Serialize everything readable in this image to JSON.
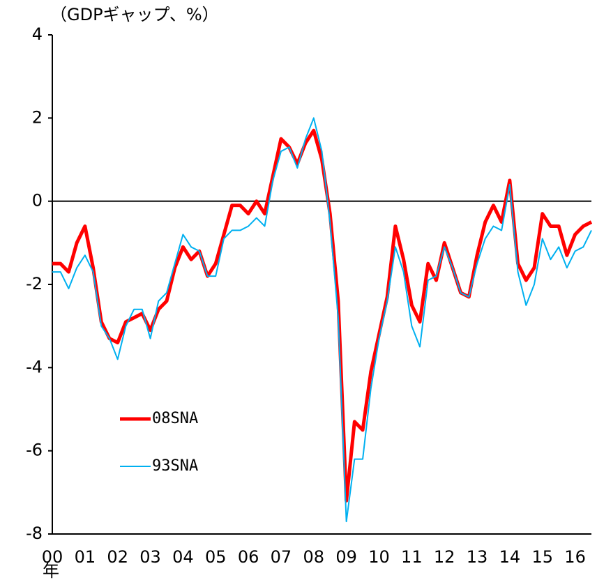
{
  "chart_data": {
    "type": "line",
    "title": "（GDPギャップ、%）",
    "x_unit": "年",
    "categories": [
      "00",
      null,
      null,
      null,
      "01",
      null,
      null,
      null,
      "02",
      null,
      null,
      null,
      "03",
      null,
      null,
      null,
      "04",
      null,
      null,
      null,
      "05",
      null,
      null,
      null,
      "06",
      null,
      null,
      null,
      "07",
      null,
      null,
      null,
      "08",
      null,
      null,
      null,
      "09",
      null,
      null,
      null,
      "10",
      null,
      null,
      null,
      "11",
      null,
      null,
      null,
      "12",
      null,
      null,
      null,
      "13",
      null,
      null,
      null,
      "14",
      null,
      null,
      null,
      "15",
      null,
      null,
      null,
      "16",
      null,
      null
    ],
    "series": [
      {
        "name": "08SNA",
        "color": "#ff0000",
        "width": 5,
        "values": [
          -1.5,
          -1.5,
          -1.7,
          -1.0,
          -0.6,
          -1.6,
          -2.9,
          -3.3,
          -3.4,
          -2.9,
          -2.8,
          -2.7,
          -3.1,
          -2.6,
          -2.4,
          -1.6,
          -1.1,
          -1.4,
          -1.2,
          -1.8,
          -1.5,
          -0.8,
          -0.1,
          -0.1,
          -0.3,
          0.0,
          -0.3,
          0.6,
          1.5,
          1.3,
          0.9,
          1.4,
          1.7,
          1.0,
          -0.3,
          -2.4,
          -7.2,
          -5.3,
          -5.5,
          -4.1,
          -3.2,
          -2.3,
          -0.6,
          -1.4,
          -2.5,
          -2.9,
          -1.5,
          -1.9,
          -1.0,
          -1.6,
          -2.2,
          -2.3,
          -1.3,
          -0.5,
          -0.1,
          -0.5,
          0.5,
          -1.5,
          -1.9,
          -1.6,
          -0.3,
          -0.6,
          -0.6,
          -1.3,
          -0.8,
          -0.6,
          -0.5
        ]
      },
      {
        "name": "93SNA",
        "color": "#00b0f0",
        "width": 2,
        "values": [
          -1.7,
          -1.7,
          -2.1,
          -1.6,
          -1.3,
          -1.7,
          -3.0,
          -3.3,
          -3.8,
          -3.0,
          -2.6,
          -2.6,
          -3.3,
          -2.4,
          -2.2,
          -1.5,
          -0.8,
          -1.1,
          -1.2,
          -1.8,
          -1.8,
          -0.9,
          -0.7,
          -0.7,
          -0.6,
          -0.4,
          -0.6,
          0.5,
          1.2,
          1.3,
          0.8,
          1.5,
          2.0,
          1.2,
          -0.5,
          -2.8,
          -7.7,
          -6.2,
          -6.2,
          -4.5,
          -3.3,
          -2.4,
          -1.1,
          -1.7,
          -3.0,
          -3.5,
          -1.9,
          -1.8,
          -1.1,
          -1.6,
          -2.2,
          -2.3,
          -1.5,
          -0.9,
          -0.6,
          -0.7,
          0.4,
          -1.7,
          -2.5,
          -2.0,
          -0.9,
          -1.4,
          -1.1,
          -1.6,
          -1.2,
          -1.1,
          -0.7
        ]
      }
    ],
    "ylim": [
      -8,
      4
    ],
    "yticks": [
      -8,
      -6,
      -4,
      -2,
      0,
      2,
      4
    ],
    "zero_line": true,
    "grid": false,
    "legend": "lower left"
  }
}
